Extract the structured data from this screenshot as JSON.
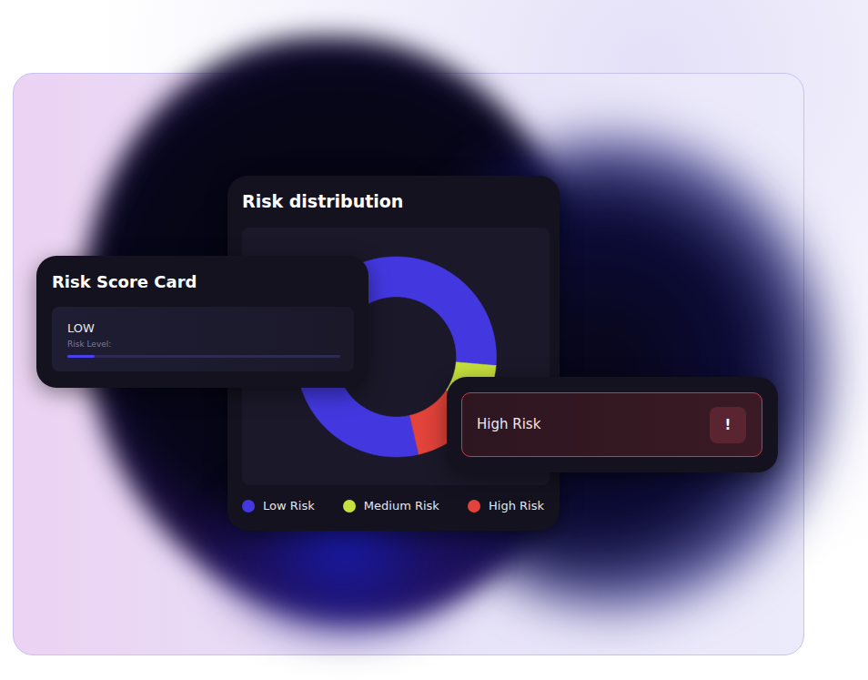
{
  "chart_data": {
    "type": "donut",
    "title": "Risk distribution",
    "categories": [
      "Low Risk",
      "Medium Risk",
      "High Risk"
    ],
    "values": [
      80,
      8,
      12
    ],
    "colors": [
      "#4338e0",
      "#c6e03c",
      "#e2433a"
    ],
    "legend": "bottom",
    "tick_labels": false
  },
  "risk_score_card": {
    "title": "Risk Score Card",
    "level": "LOW",
    "level_label": "Risk Level:",
    "progress": 10,
    "progress_range": [
      0,
      100
    ]
  },
  "alert_card": {
    "label": "High Risk",
    "icon": "!"
  }
}
